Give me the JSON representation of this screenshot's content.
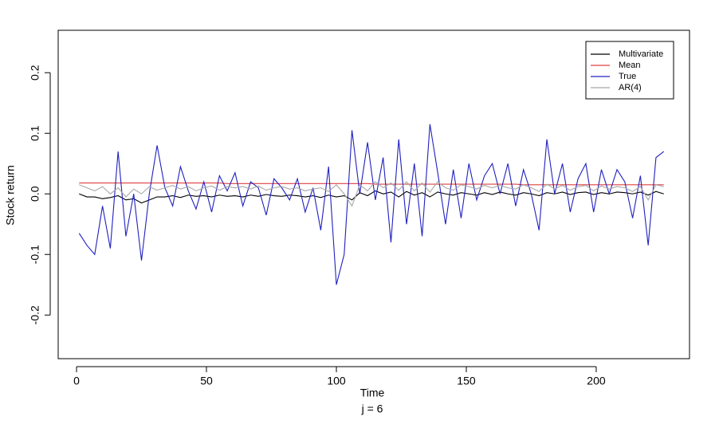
{
  "chart_data": {
    "type": "line",
    "x_label": "Time",
    "subtitle": "j = 6",
    "y_label": "Stock return",
    "x": [
      1,
      4,
      7,
      10,
      13,
      16,
      19,
      22,
      25,
      28,
      31,
      34,
      37,
      40,
      43,
      46,
      49,
      52,
      55,
      58,
      61,
      64,
      67,
      70,
      73,
      76,
      79,
      82,
      85,
      88,
      91,
      94,
      97,
      100,
      103,
      106,
      109,
      112,
      115,
      118,
      121,
      124,
      127,
      130,
      133,
      136,
      139,
      142,
      145,
      148,
      151,
      154,
      157,
      160,
      163,
      166,
      169,
      172,
      175,
      178,
      181,
      184,
      187,
      190,
      193,
      196,
      199,
      202,
      205,
      208,
      211,
      214,
      217,
      220,
      223,
      226
    ],
    "series": [
      {
        "name": "Multivariate",
        "color": "#000000",
        "values": [
          0.0,
          -0.005,
          -0.005,
          -0.008,
          -0.006,
          -0.003,
          -0.01,
          -0.008,
          -0.015,
          -0.01,
          -0.005,
          -0.005,
          -0.003,
          -0.006,
          -0.002,
          -0.004,
          -0.003,
          -0.005,
          -0.002,
          -0.004,
          -0.003,
          -0.005,
          -0.002,
          -0.004,
          -0.001,
          -0.003,
          -0.004,
          -0.002,
          -0.003,
          -0.005,
          -0.003,
          -0.006,
          -0.002,
          -0.005,
          -0.003,
          -0.01,
          0.002,
          -0.003,
          0.005,
          0.0,
          0.003,
          -0.005,
          0.004,
          -0.002,
          0.002,
          -0.005,
          0.003,
          0.0,
          -0.002,
          0.002,
          0.0,
          -0.002,
          0.002,
          -0.001,
          0.003,
          0.0,
          -0.002,
          0.002,
          0.0,
          -0.003,
          0.002,
          0.0,
          0.003,
          -0.001,
          0.002,
          0.003,
          -0.001,
          0.002,
          0.0,
          0.003,
          0.002,
          0.0,
          0.003,
          -0.002,
          0.004,
          0.0
        ]
      },
      {
        "name": "Mean",
        "color": "#e04040",
        "values": [
          0.018,
          0.018,
          0.018,
          0.018,
          0.018,
          0.018,
          0.018,
          0.018,
          0.018,
          0.018,
          0.018,
          0.018,
          0.018,
          0.018,
          0.018,
          0.018,
          0.018,
          0.018,
          0.018,
          0.017,
          0.017,
          0.017,
          0.017,
          0.017,
          0.017,
          0.017,
          0.017,
          0.017,
          0.017,
          0.017,
          0.017,
          0.017,
          0.017,
          0.017,
          0.017,
          0.017,
          0.017,
          0.017,
          0.016,
          0.016,
          0.016,
          0.016,
          0.016,
          0.016,
          0.016,
          0.016,
          0.016,
          0.016,
          0.016,
          0.016,
          0.016,
          0.016,
          0.016,
          0.016,
          0.016,
          0.016,
          0.016,
          0.015,
          0.015,
          0.015,
          0.015,
          0.015,
          0.015,
          0.015,
          0.015,
          0.015,
          0.015,
          0.015,
          0.015,
          0.015,
          0.015,
          0.015,
          0.015,
          0.015,
          0.015,
          0.015
        ]
      },
      {
        "name": "True",
        "color": "#2020c0",
        "values": [
          -0.065,
          -0.085,
          -0.1,
          -0.02,
          -0.09,
          0.07,
          -0.07,
          0.0,
          -0.11,
          0.0,
          0.08,
          0.01,
          -0.02,
          0.045,
          0.005,
          -0.025,
          0.02,
          -0.03,
          0.03,
          0.005,
          0.035,
          -0.02,
          0.02,
          0.01,
          -0.035,
          0.025,
          0.01,
          -0.01,
          0.025,
          -0.03,
          0.01,
          -0.06,
          0.045,
          -0.15,
          -0.1,
          0.105,
          0.0,
          0.085,
          -0.01,
          0.06,
          -0.08,
          0.09,
          -0.05,
          0.05,
          -0.07,
          0.115,
          0.035,
          -0.05,
          0.04,
          -0.04,
          0.05,
          -0.01,
          0.03,
          0.05,
          0.0,
          0.05,
          -0.02,
          0.04,
          0.0,
          -0.06,
          0.09,
          0.0,
          0.05,
          -0.03,
          0.025,
          0.05,
          -0.03,
          0.04,
          0.0,
          0.04,
          0.02,
          -0.04,
          0.03,
          -0.085,
          0.06,
          0.07
        ]
      },
      {
        "name": "AR(4)",
        "color": "#a8a8a8",
        "values": [
          0.015,
          0.01,
          0.005,
          0.012,
          0.0,
          0.01,
          -0.005,
          0.008,
          0.0,
          0.012,
          0.006,
          0.01,
          0.014,
          0.008,
          0.012,
          0.005,
          0.01,
          0.013,
          0.006,
          0.012,
          0.01,
          0.012,
          0.008,
          0.013,
          0.006,
          0.01,
          0.012,
          0.008,
          0.01,
          0.005,
          0.008,
          0.01,
          0.004,
          0.015,
          0.0,
          -0.02,
          0.015,
          0.005,
          0.02,
          0.01,
          0.018,
          0.006,
          0.02,
          0.005,
          0.018,
          0.003,
          0.02,
          0.01,
          0.006,
          0.015,
          0.012,
          0.008,
          0.014,
          0.01,
          0.014,
          0.01,
          0.008,
          0.015,
          0.01,
          0.004,
          0.016,
          0.008,
          0.014,
          0.006,
          0.012,
          0.014,
          0.005,
          0.013,
          0.008,
          0.012,
          0.01,
          0.004,
          0.012,
          -0.01,
          0.015,
          0.012
        ]
      }
    ],
    "xlim": [
      -7.06,
      235.9
    ],
    "ylim": [
      -0.272,
      0.27
    ],
    "xticks": [
      0,
      50,
      100,
      150,
      200
    ],
    "yticks": [
      -0.2,
      -0.1,
      {
        "value": 0,
        "label": "0.0"
      },
      0.1,
      0.2
    ],
    "legend": "top-right",
    "grid": false
  }
}
